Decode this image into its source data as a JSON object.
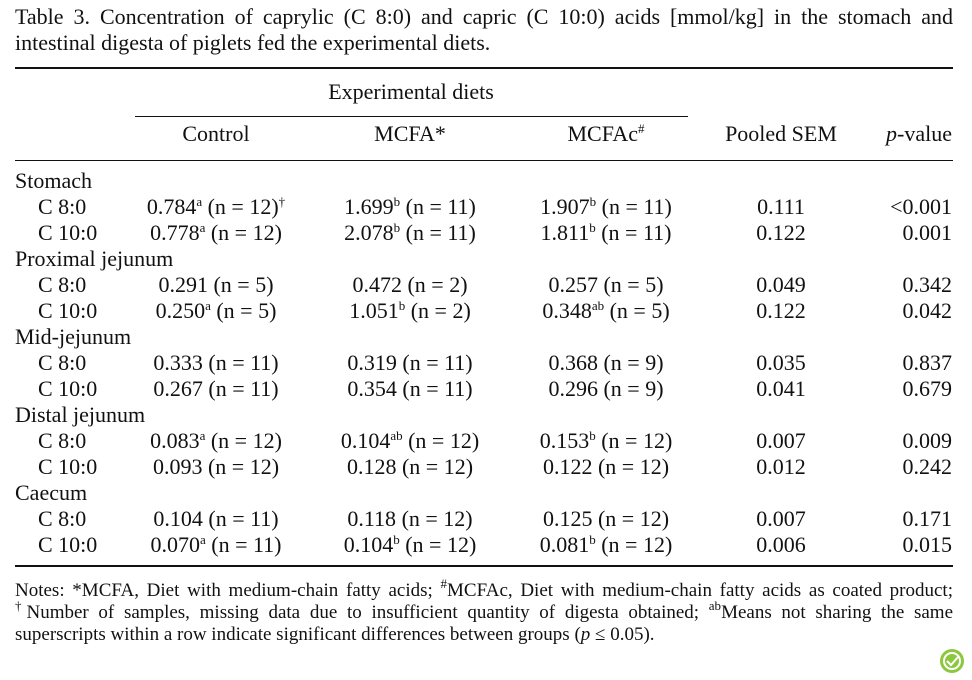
{
  "caption": "Table 3.  Concentration of caprylic (C 8:0) and capric (C 10:0) acids [mmol/kg] in the stomach and intestinal digesta of piglets fed the experimental diets.",
  "table": {
    "header": {
      "group": "Experimental diets",
      "columns": [
        {
          "text": "Control"
        },
        {
          "text": "MCFA*"
        },
        {
          "text": "MCFAc",
          "sup": "#"
        },
        {
          "text": "Pooled SEM"
        },
        {
          "italic": "p",
          "text": "-value"
        }
      ]
    },
    "sections": [
      {
        "name": "Stomach",
        "rows": [
          {
            "label": "C 8:0",
            "cells": [
              {
                "value": "0.784",
                "sup": "a",
                "n": "(n = 12)",
                "mark": "†"
              },
              {
                "value": "1.699",
                "sup": "b",
                "n": "(n = 11)"
              },
              {
                "value": "1.907",
                "sup": "b",
                "n": "(n = 11)"
              }
            ],
            "sem": "0.111",
            "p": "<0.001"
          },
          {
            "label": "C 10:0",
            "cells": [
              {
                "value": "0.778",
                "sup": "a",
                "n": "(n = 12)"
              },
              {
                "value": "2.078",
                "sup": "b",
                "n": "(n = 11)"
              },
              {
                "value": "1.811",
                "sup": "b",
                "n": "(n = 11)"
              }
            ],
            "sem": "0.122",
            "p": "0.001"
          }
        ]
      },
      {
        "name": "Proximal jejunum",
        "rows": [
          {
            "label": "C 8:0",
            "cells": [
              {
                "value": "0.291",
                "n": "(n = 5)"
              },
              {
                "value": "0.472",
                "n": "(n = 2)"
              },
              {
                "value": "0.257",
                "n": "(n = 5)"
              }
            ],
            "sem": "0.049",
            "p": "0.342"
          },
          {
            "label": "C 10:0",
            "cells": [
              {
                "value": "0.250",
                "sup": "a",
                "n": "(n = 5)"
              },
              {
                "value": "1.051",
                "sup": "b",
                "n": "(n = 2)"
              },
              {
                "value": "0.348",
                "sup": "ab",
                "n": "(n = 5)"
              }
            ],
            "sem": "0.122",
            "p": "0.042"
          }
        ]
      },
      {
        "name": "Mid-jejunum",
        "rows": [
          {
            "label": "C 8:0",
            "cells": [
              {
                "value": "0.333",
                "n": "(n = 11)"
              },
              {
                "value": "0.319",
                "n": "(n = 11)"
              },
              {
                "value": "0.368",
                "n": "(n = 9)"
              }
            ],
            "sem": "0.035",
            "p": "0.837"
          },
          {
            "label": "C 10:0",
            "cells": [
              {
                "value": "0.267",
                "n": "(n = 11)"
              },
              {
                "value": "0.354",
                "n": "(n = 11)"
              },
              {
                "value": "0.296",
                "n": "(n = 9)"
              }
            ],
            "sem": "0.041",
            "p": "0.679"
          }
        ]
      },
      {
        "name": "Distal jejunum",
        "rows": [
          {
            "label": "C 8:0",
            "cells": [
              {
                "value": "0.083",
                "sup": "a",
                "n": "(n = 12)"
              },
              {
                "value": "0.104",
                "sup": "ab",
                "n": "(n = 12)"
              },
              {
                "value": "0.153",
                "sup": "b",
                "n": "(n = 12)"
              }
            ],
            "sem": "0.007",
            "p": "0.009"
          },
          {
            "label": "C 10:0",
            "cells": [
              {
                "value": "0.093",
                "n": "(n = 12)"
              },
              {
                "value": "0.128",
                "n": "(n = 12)"
              },
              {
                "value": "0.122",
                "n": "(n = 12)"
              }
            ],
            "sem": "0.012",
            "p": "0.242"
          }
        ]
      },
      {
        "name": "Caecum",
        "rows": [
          {
            "label": "C 8:0",
            "cells": [
              {
                "value": "0.104",
                "n": "(n = 11)"
              },
              {
                "value": "0.118",
                "n": "(n = 12)"
              },
              {
                "value": "0.125",
                "n": "(n = 12)"
              }
            ],
            "sem": "0.007",
            "p": "0.171"
          },
          {
            "label": "C 10:0",
            "cells": [
              {
                "value": "0.070",
                "sup": "a",
                "n": "(n = 11)"
              },
              {
                "value": "0.104",
                "sup": "b",
                "n": "(n = 12)"
              },
              {
                "value": "0.081",
                "sup": "b",
                "n": "(n = 12)"
              }
            ],
            "sem": "0.006",
            "p": "0.015"
          }
        ]
      }
    ]
  },
  "notes": [
    {
      "text": "Notes: *MCFA, Diet with medium-chain fatty acids; "
    },
    {
      "sup": "#"
    },
    {
      "text": "MCFAc, Diet with medium-chain fatty acids as coated product; "
    },
    {
      "sup": "†"
    },
    {
      "text": "Number of samples, missing data due to insufficient quantity of digesta obtained; "
    },
    {
      "sup": "ab"
    },
    {
      "text": "Means not sharing the same superscripts within a row indicate significant differences between groups ("
    },
    {
      "italic": "p"
    },
    {
      "text": " ≤ 0.05)."
    }
  ]
}
